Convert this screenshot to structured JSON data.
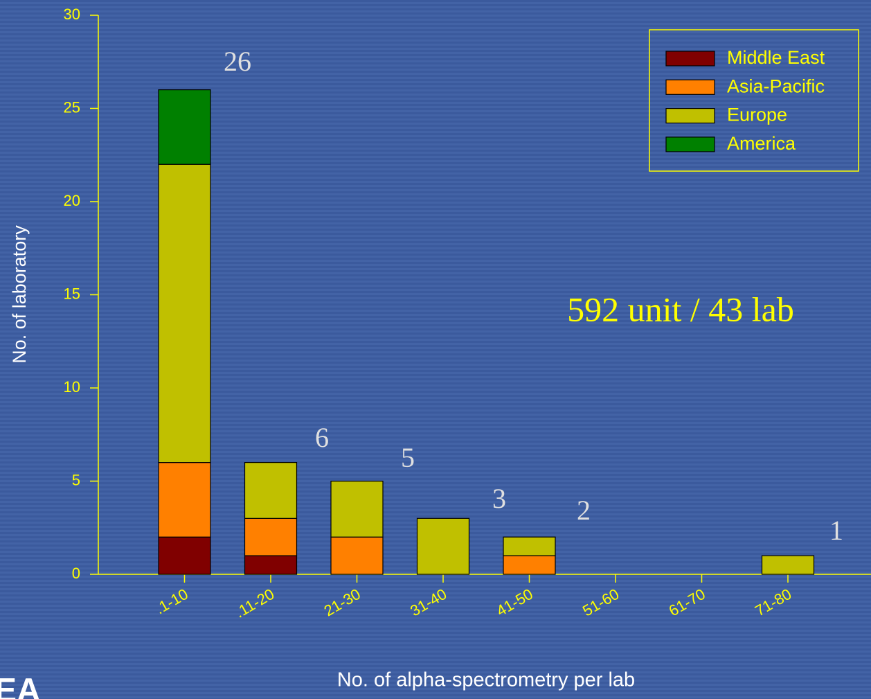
{
  "chart_data": {
    "type": "stacked_bar",
    "xlabel": "No. of alpha-spectrometry per lab",
    "ylabel": "No. of laboratory",
    "categories": [
      ".1-10",
      ".11-20",
      "21-30",
      "31-40",
      "41-50",
      "51-60",
      "61-70",
      "71-80"
    ],
    "series": [
      {
        "name": "Middle East",
        "color": "#800000",
        "values": [
          2,
          1,
          0,
          0,
          0,
          0,
          0,
          0
        ]
      },
      {
        "name": "Asia-Pacific",
        "color": "#ff8000",
        "values": [
          4,
          2,
          2,
          0,
          1,
          0,
          0,
          0
        ]
      },
      {
        "name": "Europe",
        "color": "#c0c000",
        "values": [
          16,
          3,
          3,
          3,
          1,
          0,
          0,
          1
        ]
      },
      {
        "name": "America",
        "color": "#008000",
        "values": [
          4,
          0,
          0,
          0,
          0,
          0,
          0,
          0
        ]
      }
    ],
    "ylim": [
      0,
      30
    ],
    "yticks": [
      0,
      5,
      10,
      15,
      20,
      25,
      30
    ],
    "legend": "top-right",
    "annotations": [
      "26",
      "6",
      "5",
      "3",
      "2",
      "1",
      "592 unit / 43 lab"
    ],
    "logo": "EA"
  }
}
